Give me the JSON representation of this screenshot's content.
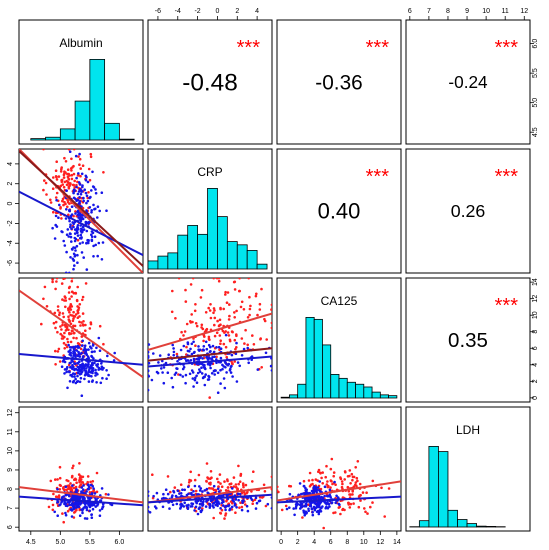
{
  "chart_data": {
    "type": "scatter-matrix",
    "variables": [
      "Albumin",
      "CRP",
      "CA125",
      "LDH"
    ],
    "axes": {
      "Albumin": {
        "range": [
          4.3,
          6.4
        ],
        "ticks": [
          4.5,
          5.0,
          5.5,
          6.0
        ],
        "tick_labels": [
          "4.5",
          "5.0",
          "5.5",
          "6.0"
        ]
      },
      "CRP": {
        "range": [
          -7.0,
          5.5
        ],
        "ticks": [
          -6,
          -4,
          -2,
          0,
          2,
          4
        ],
        "tick_labels": [
          "-6",
          "-4",
          "-2",
          "0",
          "2",
          "4"
        ]
      },
      "CA125": {
        "range": [
          -0.5,
          14.5
        ],
        "ticks": [
          0,
          2,
          4,
          6,
          8,
          10,
          12,
          14
        ],
        "tick_labels": [
          "0",
          "2",
          "4",
          "6",
          "8",
          "10",
          "12",
          "14"
        ]
      },
      "LDH": {
        "range": [
          5.8,
          12.3
        ],
        "ticks": [
          6,
          7,
          8,
          9,
          10,
          11,
          12
        ],
        "tick_labels": [
          "6",
          "7",
          "8",
          "9",
          "10",
          "11",
          "12"
        ]
      }
    },
    "correlations": [
      {
        "pair": [
          "Albumin",
          "CRP"
        ],
        "value": "-0.48",
        "stars": "***"
      },
      {
        "pair": [
          "Albumin",
          "CA125"
        ],
        "value": "-0.36",
        "stars": "***"
      },
      {
        "pair": [
          "Albumin",
          "LDH"
        ],
        "value": "-0.24",
        "stars": "***"
      },
      {
        "pair": [
          "CRP",
          "CA125"
        ],
        "value": "0.40",
        "stars": "***"
      },
      {
        "pair": [
          "CRP",
          "LDH"
        ],
        "value": "0.26",
        "stars": "***"
      },
      {
        "pair": [
          "CA125",
          "LDH"
        ],
        "value": "0.35",
        "stars": "***"
      }
    ],
    "histograms": {
      "Albumin": {
        "bin_edges": [
          4.5,
          4.75,
          5.0,
          5.25,
          5.5,
          5.75,
          6.0,
          6.25
        ],
        "counts": [
          5,
          10,
          40,
          140,
          290,
          60,
          3
        ]
      },
      "CRP": {
        "bin_edges": [
          -7,
          -6,
          -5,
          -4,
          -3,
          -2,
          -1,
          0,
          1,
          2,
          3,
          4,
          5
        ],
        "counts": [
          10,
          16,
          20,
          42,
          54,
          43,
          100,
          65,
          34,
          30,
          23,
          6
        ]
      },
      "CA125": {
        "bin_edges": [
          0,
          1,
          2,
          3,
          4,
          5,
          6,
          7,
          8,
          9,
          10,
          11,
          12,
          13,
          14
        ],
        "counts": [
          2,
          8,
          35,
          205,
          200,
          135,
          60,
          50,
          40,
          35,
          28,
          15,
          8,
          6
        ]
      },
      "LDH": {
        "bin_edges": [
          6.0,
          6.5,
          7.0,
          7.5,
          8.0,
          8.5,
          9.0,
          9.5,
          10.0,
          10.5,
          11.0
        ],
        "counts": [
          1,
          22,
          280,
          262,
          58,
          26,
          12,
          3,
          2,
          1
        ]
      }
    },
    "groups": [
      {
        "color": "#ff2020",
        "fit_color": "#e0403a"
      },
      {
        "color": "#1515e8",
        "fit_color": "#1818cc"
      }
    ],
    "scatter": [
      {
        "x": "Albumin",
        "y": "CRP",
        "clusters": [
          {
            "group": 0,
            "n": 160,
            "mx": 5.15,
            "my": 1.6,
            "sx": 0.18,
            "sy": 2.0
          },
          {
            "group": 1,
            "n": 230,
            "mx": 5.35,
            "my": -1.5,
            "sx": 0.17,
            "sy": 2.4
          }
        ],
        "fits": [
          {
            "group": 0,
            "x": [
              4.3,
              6.4
            ],
            "y": [
              5.5,
              -7.0
            ]
          },
          {
            "group": 1,
            "x": [
              4.3,
              6.4
            ],
            "y": [
              1.2,
              -5.2
            ]
          },
          {
            "group": 2,
            "x": [
              4.3,
              6.4
            ],
            "y": [
              5.3,
              -6.3
            ],
            "color": "#8b1a1a"
          }
        ]
      },
      {
        "x": "Albumin",
        "y": "CA125",
        "clusters": [
          {
            "group": 0,
            "n": 170,
            "mx": 5.2,
            "my": 9.0,
            "sx": 0.18,
            "sy": 2.8
          },
          {
            "group": 1,
            "n": 230,
            "mx": 5.4,
            "my": 4.2,
            "sx": 0.18,
            "sy": 1.2
          }
        ],
        "fits": [
          {
            "group": 0,
            "x": [
              4.3,
              6.4
            ],
            "y": [
              13.0,
              2.5
            ]
          },
          {
            "group": 1,
            "x": [
              4.3,
              6.4
            ],
            "y": [
              5.3,
              4.0
            ]
          }
        ]
      },
      {
        "x": "Albumin",
        "y": "LDH",
        "clusters": [
          {
            "group": 0,
            "n": 170,
            "mx": 5.25,
            "my": 7.8,
            "sx": 0.2,
            "sy": 0.55
          },
          {
            "group": 1,
            "n": 230,
            "mx": 5.35,
            "my": 7.4,
            "sx": 0.18,
            "sy": 0.35
          }
        ],
        "fits": [
          {
            "group": 0,
            "x": [
              4.3,
              6.4
            ],
            "y": [
              8.1,
              7.3
            ]
          },
          {
            "group": 1,
            "x": [
              4.3,
              6.4
            ],
            "y": [
              7.6,
              7.15
            ]
          }
        ]
      },
      {
        "x": "CRP",
        "y": "CA125",
        "clusters": [
          {
            "group": 0,
            "n": 170,
            "mx": 0.5,
            "my": 8.5,
            "sx": 2.6,
            "sy": 2.8
          },
          {
            "group": 1,
            "n": 230,
            "mx": -1.5,
            "my": 4.3,
            "sx": 2.8,
            "sy": 1.2
          }
        ],
        "fits": [
          {
            "group": 0,
            "x": [
              -7.0,
              5.5
            ],
            "y": [
              5.8,
              10.2
            ]
          },
          {
            "group": 1,
            "x": [
              -7.0,
              5.5
            ],
            "y": [
              3.8,
              5.0
            ]
          },
          {
            "group": 2,
            "x": [
              -7.0,
              5.5
            ],
            "y": [
              4.5,
              6.0
            ],
            "color": "#8b1a1a"
          }
        ]
      },
      {
        "x": "CRP",
        "y": "LDH",
        "clusters": [
          {
            "group": 0,
            "n": 170,
            "mx": 0.5,
            "my": 7.8,
            "sx": 2.6,
            "sy": 0.6
          },
          {
            "group": 1,
            "n": 230,
            "mx": -1.5,
            "my": 7.4,
            "sx": 2.8,
            "sy": 0.35
          }
        ],
        "fits": [
          {
            "group": 0,
            "x": [
              -7.0,
              5.5
            ],
            "y": [
              7.3,
              8.1
            ]
          },
          {
            "group": 1,
            "x": [
              -7.0,
              5.5
            ],
            "y": [
              7.3,
              7.7
            ]
          }
        ]
      },
      {
        "x": "CA125",
        "y": "LDH",
        "clusters": [
          {
            "group": 0,
            "n": 170,
            "mx": 6.5,
            "my": 7.9,
            "sx": 2.8,
            "sy": 0.6
          },
          {
            "group": 1,
            "n": 230,
            "mx": 4.0,
            "my": 7.4,
            "sx": 1.3,
            "sy": 0.35
          }
        ],
        "fits": [
          {
            "group": 0,
            "x": [
              -0.5,
              14.5
            ],
            "y": [
              7.4,
              8.4
            ]
          },
          {
            "group": 1,
            "x": [
              -0.5,
              14.5
            ],
            "y": [
              7.3,
              7.6
            ]
          }
        ]
      }
    ],
    "colors": {
      "histogram_fill": "#00e5ee",
      "stars": "#ff0000",
      "text": "#000000"
    }
  }
}
